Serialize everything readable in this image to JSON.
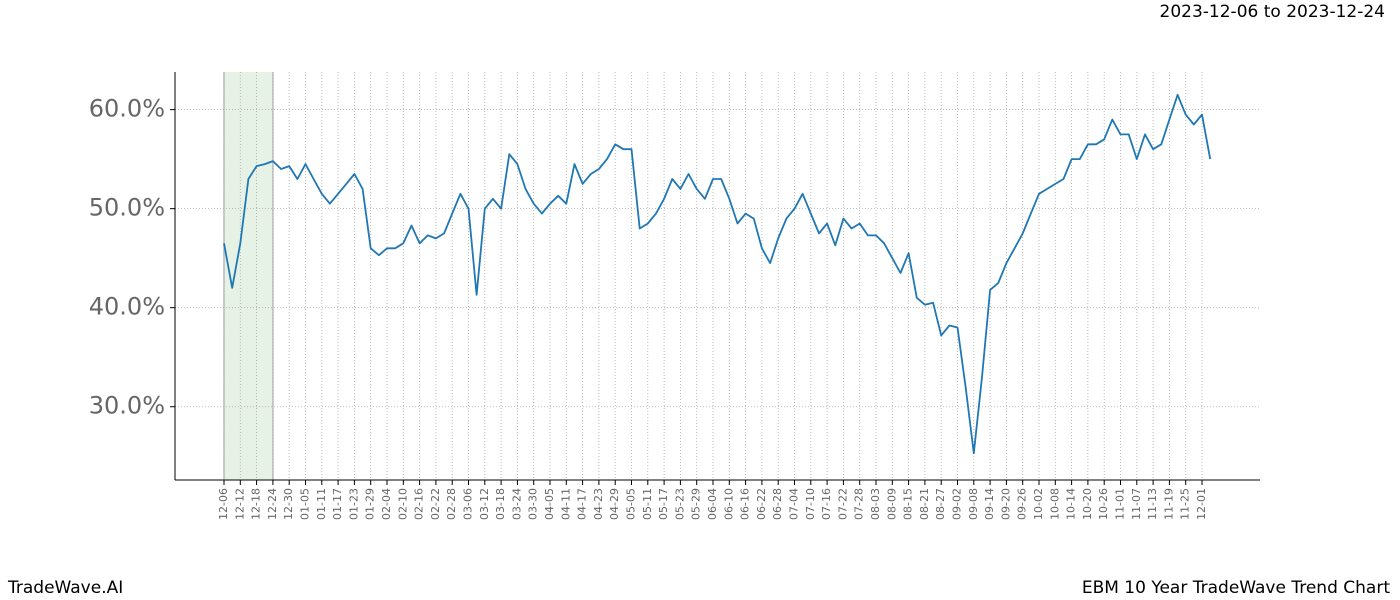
{
  "chart_data": {
    "type": "line",
    "date_range": "2023-12-06 to 2023-12-24",
    "brand": "TradeWave.AI",
    "title": "EBM 10 Year TradeWave Trend Chart",
    "categories": [
      "12-06",
      null,
      "12-12",
      null,
      "12-18",
      null,
      "12-24",
      null,
      "12-30",
      null,
      "01-05",
      null,
      "01-11",
      null,
      "01-17",
      null,
      "01-23",
      null,
      "01-29",
      null,
      "02-04",
      null,
      "02-10",
      null,
      "02-16",
      null,
      "02-22",
      null,
      "02-28",
      null,
      "03-06",
      null,
      "03-12",
      null,
      "03-18",
      null,
      "03-24",
      null,
      "03-30",
      null,
      "04-05",
      null,
      "04-11",
      null,
      "04-17",
      null,
      "04-23",
      null,
      "04-29",
      null,
      "05-05",
      null,
      "05-11",
      null,
      "05-17",
      null,
      "05-23",
      null,
      "05-29",
      null,
      "06-04",
      null,
      "06-10",
      null,
      "06-16",
      null,
      "06-22",
      null,
      "06-28",
      null,
      "07-04",
      null,
      "07-10",
      null,
      "07-16",
      null,
      "07-22",
      null,
      "07-28",
      null,
      "08-03",
      null,
      "08-09",
      null,
      "08-15",
      null,
      "08-21",
      null,
      "08-27",
      null,
      "09-02",
      null,
      "09-08",
      null,
      "09-14",
      null,
      "09-20",
      null,
      "09-26",
      null,
      "10-02",
      null,
      "10-08",
      null,
      "10-14",
      null,
      "10-20",
      null,
      "10-26",
      null,
      "11-01",
      null,
      "11-07",
      null,
      "11-13",
      null,
      "11-19",
      null,
      "11-25",
      null,
      "12-01",
      null
    ],
    "series": [
      {
        "name": "EBM",
        "color": "#1f77b4",
        "values": [
          46.5,
          42,
          46.5,
          53,
          54.3,
          54.5,
          54.8,
          54,
          54.3,
          53,
          54.5,
          53,
          51.5,
          50.5,
          51.5,
          52.5,
          53.5,
          52,
          46,
          45.3,
          46,
          46,
          46.5,
          48.3,
          46.5,
          47.3,
          47,
          47.5,
          49.5,
          51.5,
          50,
          41.3,
          50,
          51,
          50,
          55.5,
          54.5,
          52,
          50.5,
          49.5,
          50.5,
          51.3,
          50.5,
          54.5,
          52.5,
          53.5,
          54,
          55,
          56.5,
          56,
          56,
          48,
          48.5,
          49.5,
          51,
          53,
          52,
          53.5,
          52,
          51,
          53,
          53,
          51,
          48.5,
          49.5,
          49,
          46,
          44.5,
          47,
          49,
          50,
          51.5,
          49.5,
          47.5,
          48.5,
          46.3,
          49,
          48,
          48.5,
          47.3,
          47.3,
          46.5,
          45,
          43.5,
          45.5,
          41,
          40.3,
          40.5,
          37.2,
          38.2,
          38,
          32,
          25.3,
          33,
          41.8,
          42.5,
          44.5,
          46,
          47.5,
          49.5,
          51.5,
          52,
          52.5,
          53,
          55,
          55,
          56.5,
          56.5,
          57,
          59,
          57.5,
          57.5,
          55,
          57.5,
          56,
          56.5,
          59,
          61.5,
          59.5,
          58.5,
          59.5,
          55
        ]
      }
    ],
    "highlight": {
      "from": "12-06",
      "to": "12-24",
      "color": "#e6f2e6"
    },
    "ylim": [
      22.6,
      63.8
    ],
    "yticks": [
      {
        "value": 30,
        "label": "30.0%"
      },
      {
        "value": 40,
        "label": "40.0%"
      },
      {
        "value": 50,
        "label": "50.0%"
      },
      {
        "value": 60,
        "label": "60.0%"
      }
    ],
    "grid": true
  }
}
